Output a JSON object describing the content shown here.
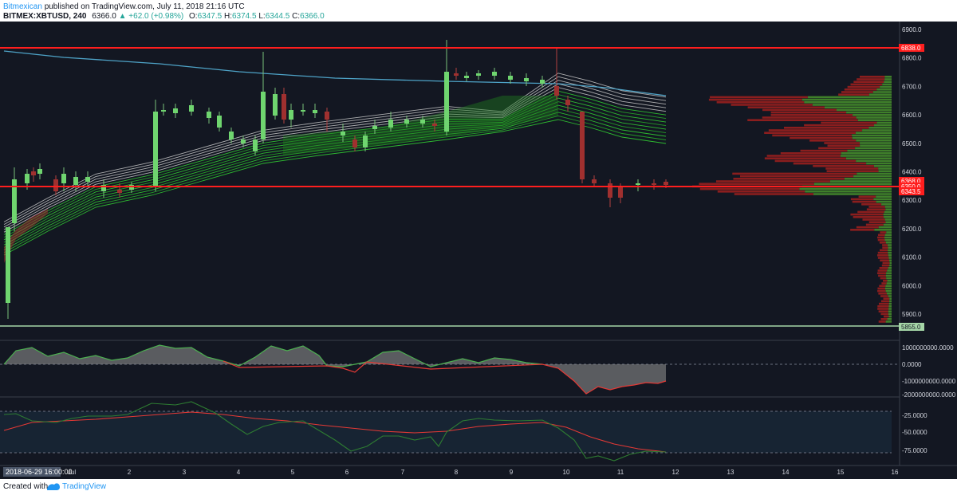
{
  "header": {
    "author": "Bitmexican",
    "published_text": "published on TradingView.com, July 11, 2018 21:16 UTC",
    "symbol": "BITMEX:XBTUSD, 240",
    "last": "6366.0",
    "change": "▲ +62.0 (+0.98%)",
    "o_label": "O:",
    "o_value": "6347.5",
    "h_label": "H:",
    "h_value": "6374.5",
    "l_label": "L:",
    "l_value": "6344.5",
    "c_label": "C:",
    "c_value": "6366.0"
  },
  "price_axis": {
    "ticks": [
      "6900.0",
      "6800.0",
      "6700.0",
      "6600.0",
      "6500.0",
      "6400.0",
      "6300.0",
      "6200.0",
      "6100.0",
      "6000.0",
      "5900.0"
    ],
    "badges": [
      {
        "label": "6838.0",
        "color": "#ff1e1e"
      },
      {
        "label": "6368.0",
        "color": "#ff1e1e"
      },
      {
        "label": "6350.0",
        "color": "#ff1e1e"
      },
      {
        "label": "6343.5",
        "color": "#ff1e1e"
      },
      {
        "label": "5855.0",
        "color": "#a5d6a7"
      }
    ]
  },
  "oscillator_axis": {
    "ticks": [
      "1000000000.0000",
      "0.0000",
      "-1000000000.0000",
      "-2000000000.0000"
    ]
  },
  "rsi_axis": {
    "ticks": [
      "-25.0000",
      "-50.0000",
      "-75.0000"
    ]
  },
  "time_axis": {
    "labels": [
      "Jul",
      "2",
      "3",
      "4",
      "5",
      "6",
      "7",
      "8",
      "9",
      "10",
      "11",
      "12",
      "13",
      "14",
      "15",
      "16"
    ],
    "cursor_label": "2018-06-29 16:00:00"
  },
  "footer": {
    "created_with": "Created with",
    "brand": "TradingView"
  },
  "colors": {
    "background": "#131722",
    "bull": "#6fd56f",
    "bear": "#a0302f",
    "level_line": "#ff1e1e",
    "support_line": "#a5d6a7",
    "ma_line": "#4ea3c7",
    "ribbon_green": "#2ec22e",
    "ribbon_grey": "#c8c8c8"
  }
}
